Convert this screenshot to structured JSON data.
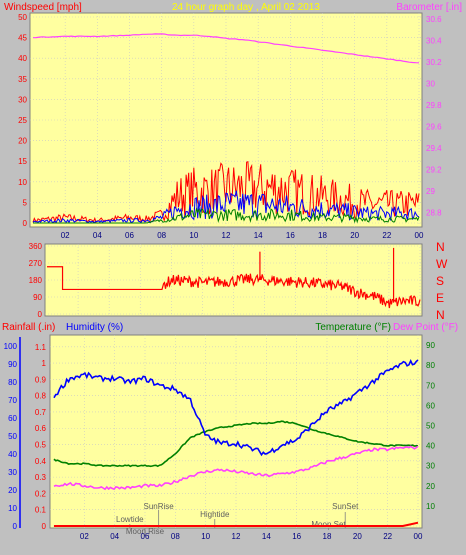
{
  "panel1": {
    "left_title": "Windspeed [mph]",
    "center_title": "24 hour graph day , April 02 2013",
    "right_title": "Barometer [.in]",
    "left_ticks": [
      "50",
      "45",
      "40",
      "35",
      "30",
      "25",
      "20",
      "15",
      "10",
      "5",
      "0"
    ],
    "right_ticks": [
      "30.6",
      "30.4",
      "30.2",
      "30",
      "29.8",
      "29.6",
      "29.4",
      "29.2",
      "29",
      "28.8"
    ],
    "x_ticks": [
      "02",
      "04",
      "06",
      "08",
      "10",
      "12",
      "14",
      "16",
      "18",
      "20",
      "22",
      "00"
    ]
  },
  "panel2": {
    "left_ticks": [
      "360",
      "270",
      "180",
      "90",
      "0"
    ],
    "right_labels": [
      "N",
      "W",
      "S",
      "E",
      "N"
    ],
    "x_ticks": [
      "02",
      "04",
      "06",
      "08",
      "10",
      "12",
      "14",
      "16",
      "18",
      "20",
      "22",
      "00"
    ]
  },
  "panel3": {
    "rain_label": "Rainfall (.in)",
    "humidity_label": "Humidity (%)",
    "temperature_label": "Temperature (°F)",
    "dewpoint_label": "Dew Point (°F)",
    "rain_ticks": [
      "1.1",
      "1",
      "0.9",
      "0.8",
      "0.7",
      "0.6",
      "0.5",
      "0.4",
      "0.3",
      "0.2",
      "0.1",
      "0"
    ],
    "humidity_ticks": [
      "100",
      "90",
      "80",
      "70",
      "60",
      "50",
      "40",
      "30",
      "20",
      "10",
      "0"
    ],
    "temp_ticks": [
      "90",
      "80",
      "70",
      "60",
      "50",
      "40",
      "30",
      "20",
      "10"
    ],
    "x_ticks": [
      "02",
      "04",
      "06",
      "08",
      "10",
      "12",
      "14",
      "16",
      "18",
      "20",
      "22",
      "00"
    ],
    "annotations": [
      "SunRise",
      "Lowtide",
      "Moon Rise",
      "Hightide",
      "SunSet",
      "Moon Set"
    ]
  },
  "colors": {
    "background": "#c0c0c0",
    "plot": "#ffffa0",
    "windspeed": "#ff0000",
    "wind_avg": "#0000ff",
    "wind_min": "#008000",
    "barometer": "#ff40ff",
    "direction": "#ff0000",
    "rain": "#ff0000",
    "humidity": "#0000ff",
    "temperature": "#008000",
    "dewpoint": "#ff40ff",
    "title": "#ffff00"
  },
  "chart_data": [
    {
      "type": "line",
      "title": "24 hour graph day , April 02 2013",
      "x": [
        0,
        2,
        4,
        6,
        7,
        8,
        9,
        10,
        11,
        12,
        13,
        14,
        15,
        16,
        17,
        18,
        19,
        20,
        21,
        22,
        23,
        24
      ],
      "series": [
        {
          "name": "Windspeed [mph]",
          "axis": "left",
          "values": [
            1,
            2,
            1,
            2,
            1.5,
            3,
            10,
            12,
            12,
            13,
            13,
            13,
            13,
            12,
            11,
            10,
            9,
            8,
            7,
            7,
            7,
            7
          ]
        },
        {
          "name": "Windspeed [mph]",
          "axis": "left",
          "values": [
            0.5,
            1,
            0.5,
            1,
            1,
            2,
            5,
            6,
            6,
            7,
            7,
            7,
            6.5,
            6,
            5.5,
            5,
            4.5,
            4,
            3.5,
            3.5,
            3.5,
            3.5
          ]
        },
        {
          "name": "Windspeed [mph]",
          "axis": "left",
          "values": [
            0,
            0,
            0,
            0,
            0,
            1,
            2,
            3,
            3,
            3,
            3,
            3,
            3,
            3,
            2.5,
            2,
            2,
            2,
            1.5,
            1.5,
            1.5,
            1.5
          ]
        },
        {
          "name": "Barometer [.in]",
          "axis": "right",
          "values": [
            30.43,
            30.44,
            30.44,
            30.45,
            30.46,
            30.46,
            30.45,
            30.45,
            30.44,
            30.42,
            30.41,
            30.39,
            30.37,
            30.35,
            30.33,
            30.31,
            30.29,
            30.27,
            30.25,
            30.23,
            30.21,
            30.19
          ]
        }
      ],
      "xlim": [
        0,
        24
      ],
      "ylim_left": [
        0,
        50
      ],
      "ylim_right": [
        28.7,
        30.62
      ]
    },
    {
      "type": "line",
      "x": [
        0,
        1,
        2,
        5,
        7,
        8,
        9,
        10,
        11,
        12,
        13,
        14,
        15,
        16,
        17,
        18,
        19,
        20,
        21,
        22,
        23,
        24
      ],
      "series": [
        {
          "name": "direction",
          "values": [
            250,
            250,
            130,
            130,
            130,
            180,
            175,
            165,
            170,
            175,
            185,
            180,
            175,
            170,
            165,
            155,
            145,
            115,
            95,
            55,
            70,
            65
          ]
        }
      ],
      "xlim": [
        0,
        24
      ],
      "ylim": [
        0,
        360
      ]
    },
    {
      "type": "line",
      "x": [
        0,
        1,
        2,
        3,
        4,
        5,
        6,
        7,
        8,
        9,
        10,
        11,
        12,
        13,
        14,
        15,
        16,
        17,
        18,
        19,
        20,
        21,
        22,
        23,
        24
      ],
      "series": [
        {
          "name": "Humidity (%)",
          "axis": "humidity",
          "values": [
            72,
            82,
            84,
            82,
            82,
            80,
            82,
            78,
            76,
            70,
            50,
            46,
            46,
            43,
            40,
            45,
            48,
            56,
            64,
            68,
            74,
            80,
            86,
            90,
            91
          ]
        },
        {
          "name": "Temperature (°F)",
          "axis": "temp",
          "values": [
            33,
            31,
            31,
            30,
            30,
            30,
            30,
            30,
            36,
            44,
            47,
            49,
            50,
            51,
            51,
            52,
            51,
            48,
            46,
            44,
            42,
            41,
            40,
            40,
            40
          ]
        },
        {
          "name": "Dew Point (°F)",
          "axis": "temp",
          "values": [
            20,
            21,
            20,
            19,
            19,
            19,
            20,
            20,
            22,
            25,
            27,
            28,
            27,
            26,
            25,
            26,
            27,
            29,
            32,
            34,
            36,
            38,
            38,
            39,
            39
          ]
        },
        {
          "name": "Rainfall (.in)",
          "axis": "rain",
          "values": [
            0,
            0,
            0,
            0,
            0,
            0,
            0,
            0,
            0,
            0,
            0,
            0,
            0,
            0,
            0,
            0,
            0,
            0,
            0,
            0,
            0,
            0,
            0,
            0,
            0.02
          ]
        }
      ],
      "xlim": [
        0,
        24
      ],
      "ylim_rain": [
        0,
        1.16
      ],
      "ylim_humidity": [
        0,
        105
      ],
      "ylim_temp": [
        0,
        94
      ]
    }
  ]
}
